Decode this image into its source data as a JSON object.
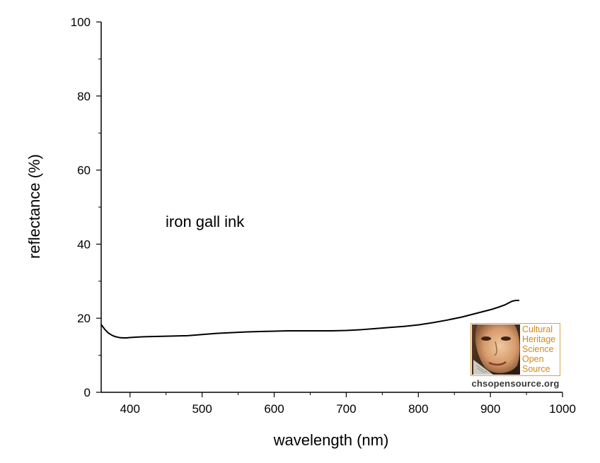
{
  "chart_data": {
    "type": "line",
    "title": "",
    "xlabel": "wavelength (nm)",
    "ylabel": "reflectance (%)",
    "xlim": [
      360,
      1000
    ],
    "ylim": [
      0,
      100
    ],
    "x_ticks": [
      400,
      500,
      600,
      700,
      800,
      900,
      1000
    ],
    "y_ticks": [
      0,
      20,
      40,
      60,
      80,
      100
    ],
    "grid": false,
    "annotation": "iron gall ink",
    "series": [
      {
        "color": "#000000",
        "x": [
          360,
          365,
          370,
          375,
          380,
          385,
          390,
          395,
          400,
          410,
          420,
          440,
          460,
          480,
          500,
          520,
          540,
          560,
          580,
          600,
          620,
          640,
          660,
          680,
          700,
          720,
          740,
          760,
          780,
          800,
          820,
          840,
          860,
          870,
          880,
          890,
          900,
          910,
          920,
          925,
          930,
          935,
          940
        ],
        "y": [
          18.3,
          17.0,
          16.0,
          15.4,
          15.0,
          14.8,
          14.7,
          14.7,
          14.8,
          14.9,
          15.0,
          15.1,
          15.2,
          15.3,
          15.6,
          15.9,
          16.1,
          16.3,
          16.4,
          16.5,
          16.6,
          16.6,
          16.6,
          16.6,
          16.7,
          16.9,
          17.2,
          17.5,
          17.8,
          18.2,
          18.8,
          19.5,
          20.3,
          20.8,
          21.3,
          21.8,
          22.3,
          22.9,
          23.6,
          24.1,
          24.6,
          24.8,
          24.8
        ]
      }
    ]
  },
  "logo": {
    "lines": [
      "Cultural",
      "Heritage",
      "Science",
      "Open",
      "Source"
    ],
    "url": "chsopensource.org",
    "accent": "#d18a1a",
    "url_color": "#3a3a3a"
  }
}
